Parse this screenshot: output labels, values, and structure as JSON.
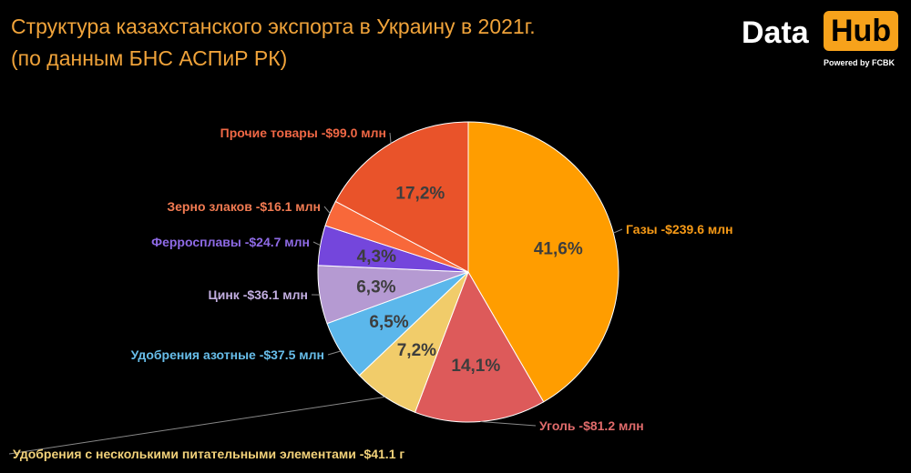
{
  "title_line1": "Структура казахстанского экспорта в Украину в 2021г.",
  "title_line2": "(по данным БНС АСПиР РК)",
  "logo": {
    "part1": "Data",
    "part2": "Hub",
    "powered": "Powered by FCBK"
  },
  "colors": {
    "background": "#000000",
    "title": "#f0a33a",
    "brand": "#f7a21b"
  },
  "chart_data": {
    "type": "pie",
    "slices": [
      {
        "label": "Газы -$239.6 млн",
        "value": 239.6,
        "percent": "41,6%",
        "color": "#ff9d00"
      },
      {
        "label": "Уголь -$81.2 млн",
        "value": 81.2,
        "percent": "14,1%",
        "color": "#dd5a5a"
      },
      {
        "label": "Удобрения с несколькими питательными элементами -$41.1 г",
        "value": 41.1,
        "percent": "7,2%",
        "color": "#f1cc6a"
      },
      {
        "label": "Удобрения азотные -$37.5 млн",
        "value": 37.5,
        "percent": "6,5%",
        "color": "#5bb7eb"
      },
      {
        "label": "Цинк -$36.1 млн",
        "value": 36.1,
        "percent": "6,3%",
        "color": "#b59ad2"
      },
      {
        "label": "Ферросплавы -$24.7 млн",
        "value": 24.7,
        "percent": "4,3%",
        "color": "#7446dc"
      },
      {
        "label": "Зерно злаков -$16.1 млн",
        "value": 16.1,
        "percent": "",
        "color": "#f8683a"
      },
      {
        "label": "Прочие товары -$99.0 млн",
        "value": 99.0,
        "percent": "17,2%",
        "color": "#e9532a"
      }
    ]
  }
}
